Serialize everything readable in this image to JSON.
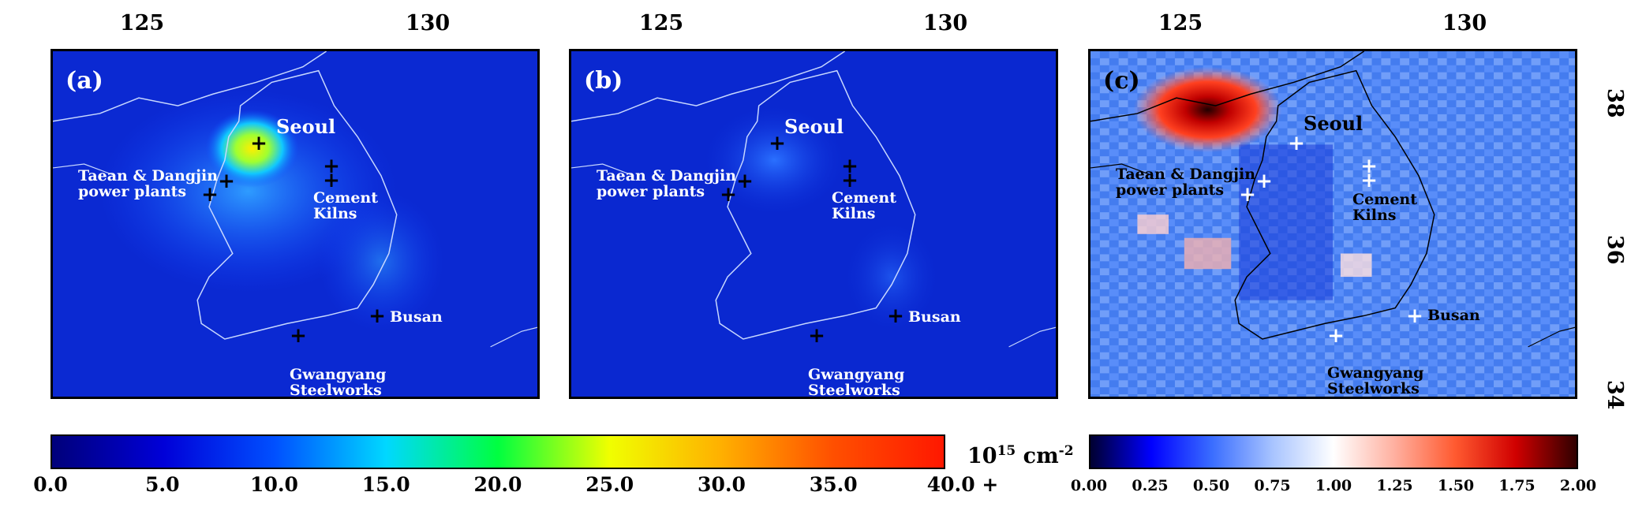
{
  "top_axis_ticks": [
    "125",
    "130"
  ],
  "right_axis_ticks": [
    "38",
    "36",
    "34"
  ],
  "left_axis_hidden_ticks": [
    "38",
    "36",
    "34"
  ],
  "panels": [
    {
      "label": "(a)",
      "style": "concentration",
      "marker_color": "#000000",
      "city_color": "#ffffff"
    },
    {
      "label": "(b)",
      "style": "concentration_low",
      "marker_color": "#000000",
      "city_color": "#ffffff"
    },
    {
      "label": "(c)",
      "style": "ratio",
      "marker_color": "#ffffff",
      "city_color": "#000000"
    }
  ],
  "places": {
    "seoul": "Seoul",
    "taean_line1": "Taean & Dangjin",
    "taean_line2": "power plants",
    "cement_line1": "Cement",
    "cement_line2": "Kilns",
    "busan": "Busan",
    "gwangyang_line1": "Gwangyang",
    "gwangyang_line2": "Steelworks"
  },
  "marker_symbol": "+",
  "colorbar_main": {
    "ticks": [
      "0.0",
      "5.0",
      "10.0",
      "15.0",
      "20.0",
      "25.0",
      "30.0",
      "35.0",
      "40.0 +"
    ],
    "unit_base": "10",
    "unit_exp": "15",
    "unit_rest": " cm",
    "unit_rest_exp": "-2",
    "colors": [
      "#00007a",
      "#0000d8",
      "#0050ff",
      "#00d8ff",
      "#00ff40",
      "#f0ff00",
      "#ffb000",
      "#ff5000",
      "#ff1800"
    ]
  },
  "colorbar_ratio": {
    "ticks": [
      "0.00",
      "0.25",
      "0.50",
      "0.75",
      "1.00",
      "1.25",
      "1.50",
      "1.75",
      "2.00"
    ],
    "colors": [
      "#000030",
      "#0000ff",
      "#3a6dff",
      "#a8c4ff",
      "#ffffff",
      "#ffb0a0",
      "#ff5a30",
      "#d00000",
      "#300000"
    ]
  }
}
